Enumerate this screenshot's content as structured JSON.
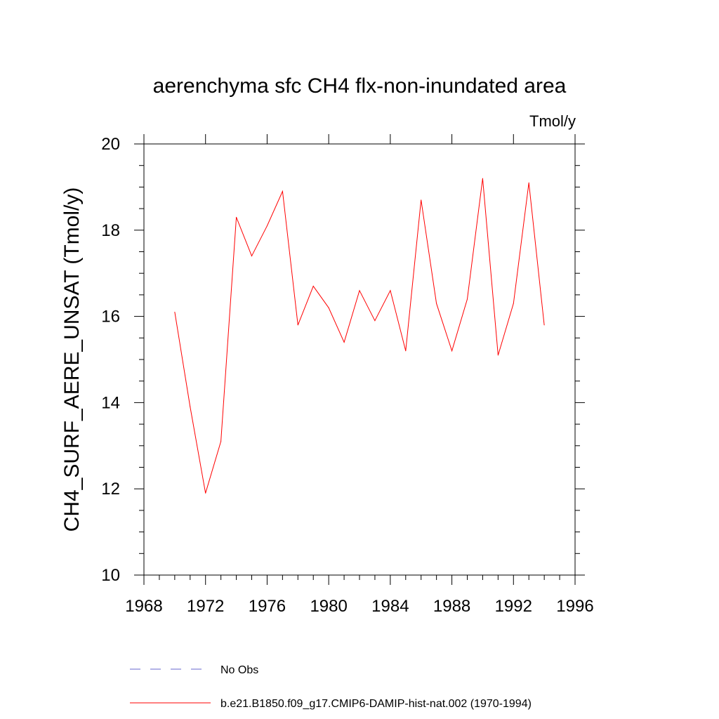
{
  "chart_data": {
    "type": "line",
    "title": "aerenchyma sfc CH4 flx-non-inundated area",
    "units_label": "Tmol/y",
    "ylabel": "CH4_SURF_AERE_UNSAT  (Tmol/y)",
    "xlabel": "",
    "xlim": [
      1968,
      1996
    ],
    "ylim": [
      10,
      20
    ],
    "x_ticks": [
      1968,
      1972,
      1976,
      1980,
      1984,
      1988,
      1992,
      1996
    ],
    "y_ticks": [
      10,
      12,
      14,
      16,
      18,
      20
    ],
    "x_tick_labels": [
      "1968",
      "1972",
      "1976",
      "1980",
      "1984",
      "1988",
      "1992",
      "1996"
    ],
    "y_tick_labels": [
      "10",
      "12",
      "14",
      "16",
      "18",
      "20"
    ],
    "grid": false,
    "series": [
      {
        "name": "b.e21.B1850.f09_g17.CMIP6-DAMIP-hist-nat.002 (1970-1994)",
        "color": "#ff0000",
        "dash": "solid",
        "x": [
          1970,
          1971,
          1972,
          1973,
          1974,
          1975,
          1976,
          1977,
          1978,
          1979,
          1980,
          1981,
          1982,
          1983,
          1984,
          1985,
          1986,
          1987,
          1988,
          1989,
          1990,
          1991,
          1992,
          1993,
          1994
        ],
        "y": [
          16.1,
          13.9,
          11.9,
          13.1,
          18.3,
          17.4,
          18.1,
          18.9,
          15.8,
          16.7,
          16.2,
          15.4,
          16.6,
          15.9,
          16.6,
          15.2,
          18.7,
          16.3,
          15.2,
          16.4,
          19.2,
          15.1,
          16.3,
          19.1,
          15.8
        ]
      }
    ],
    "legend": {
      "position": "bottom",
      "entries": [
        {
          "label": "No Obs",
          "color": "#6666cc",
          "dash": "dashed"
        },
        {
          "label": "b.e21.B1850.f09_g17.CMIP6-DAMIP-hist-nat.002 (1970-1994)",
          "color": "#ff0000",
          "dash": "solid"
        }
      ]
    }
  }
}
